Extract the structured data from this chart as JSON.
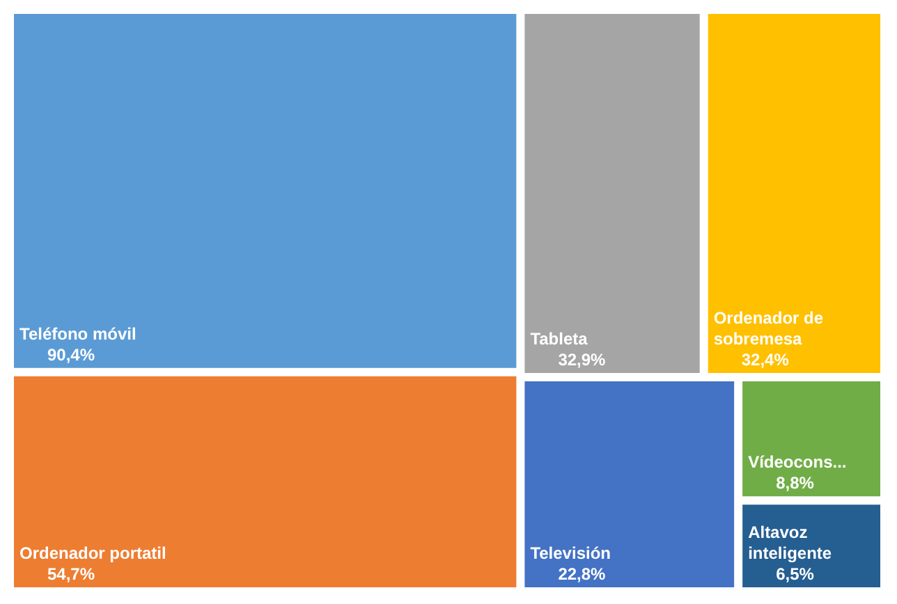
{
  "chart_data": {
    "type": "other",
    "categories": [
      "Teléfono móvil",
      "Ordenador portatil",
      "Tableta",
      "Ordenador de sobremesa",
      "Televisión",
      "Vídeocons...",
      "Altavoz inteligente"
    ],
    "values": [
      90.4,
      54.7,
      32.9,
      32.4,
      22.8,
      8.8,
      6.5
    ],
    "value_labels": [
      "90,4%",
      "54,7%",
      "32,9%",
      "32,4%",
      "22,8%",
      "8,8%",
      "6,5%"
    ],
    "colors": [
      "#5b9bd5",
      "#ed7d31",
      "#a5a5a5",
      "#ffc000",
      "#4472c4",
      "#70ad47",
      "#255e91"
    ]
  }
}
